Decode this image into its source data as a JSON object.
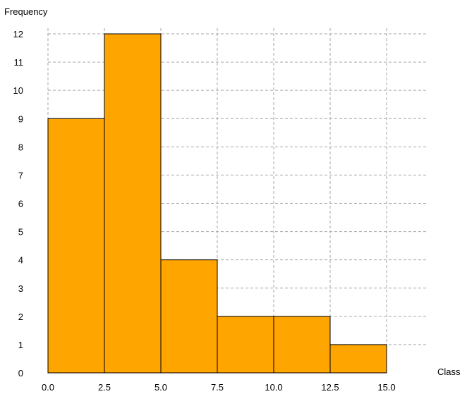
{
  "chart_data": {
    "type": "bar",
    "title": "",
    "xlabel": "Class",
    "ylabel": "Frequency",
    "bin_edges": [
      0.0,
      2.5,
      5.0,
      7.5,
      10.0,
      12.5,
      15.0
    ],
    "values": [
      9,
      12,
      4,
      2,
      2,
      1
    ],
    "xlim": [
      0.0,
      17.5
    ],
    "ylim": [
      0,
      12
    ],
    "x_ticks": [
      "0.0",
      "2.5",
      "5.0",
      "7.5",
      "10.0",
      "12.5",
      "15.0"
    ],
    "y_ticks": [
      "0",
      "1",
      "2",
      "3",
      "4",
      "5",
      "6",
      "7",
      "8",
      "9",
      "10",
      "11",
      "12"
    ],
    "grid": true,
    "legend": "none"
  },
  "colors": {
    "bar_fill": "#ffa500",
    "bar_edge": "#000000",
    "grid": "#a6a6a6",
    "axis": "#000000"
  }
}
